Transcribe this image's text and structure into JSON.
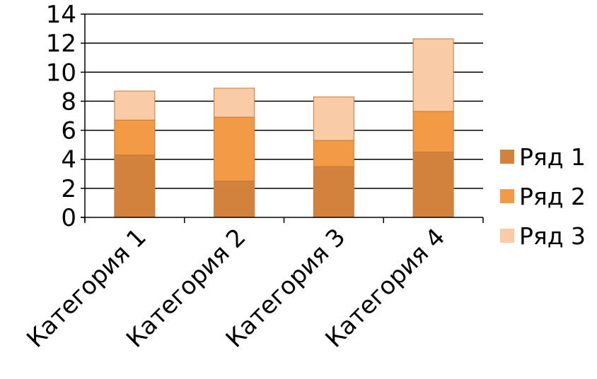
{
  "chart_data": {
    "type": "bar",
    "stacked": true,
    "categories": [
      "Категория 1",
      "Категория 2",
      "Категория 3",
      "Категория 4"
    ],
    "series": [
      {
        "name": "Ряд 1",
        "values": [
          4.3,
          2.5,
          3.5,
          4.5
        ],
        "color": "#D2823C"
      },
      {
        "name": "Ряд 2",
        "values": [
          2.4,
          4.4,
          1.8,
          2.8
        ],
        "color": "#F39A46"
      },
      {
        "name": "Ряд 3",
        "values": [
          2.0,
          2.0,
          3.0,
          5.0
        ],
        "color": "#F9CBA7"
      }
    ],
    "ylim": [
      0,
      14
    ],
    "yticks": [
      "0",
      "2",
      "4",
      "6",
      "8",
      "10",
      "12",
      "14"
    ],
    "grid": true,
    "legend_position": "right"
  }
}
